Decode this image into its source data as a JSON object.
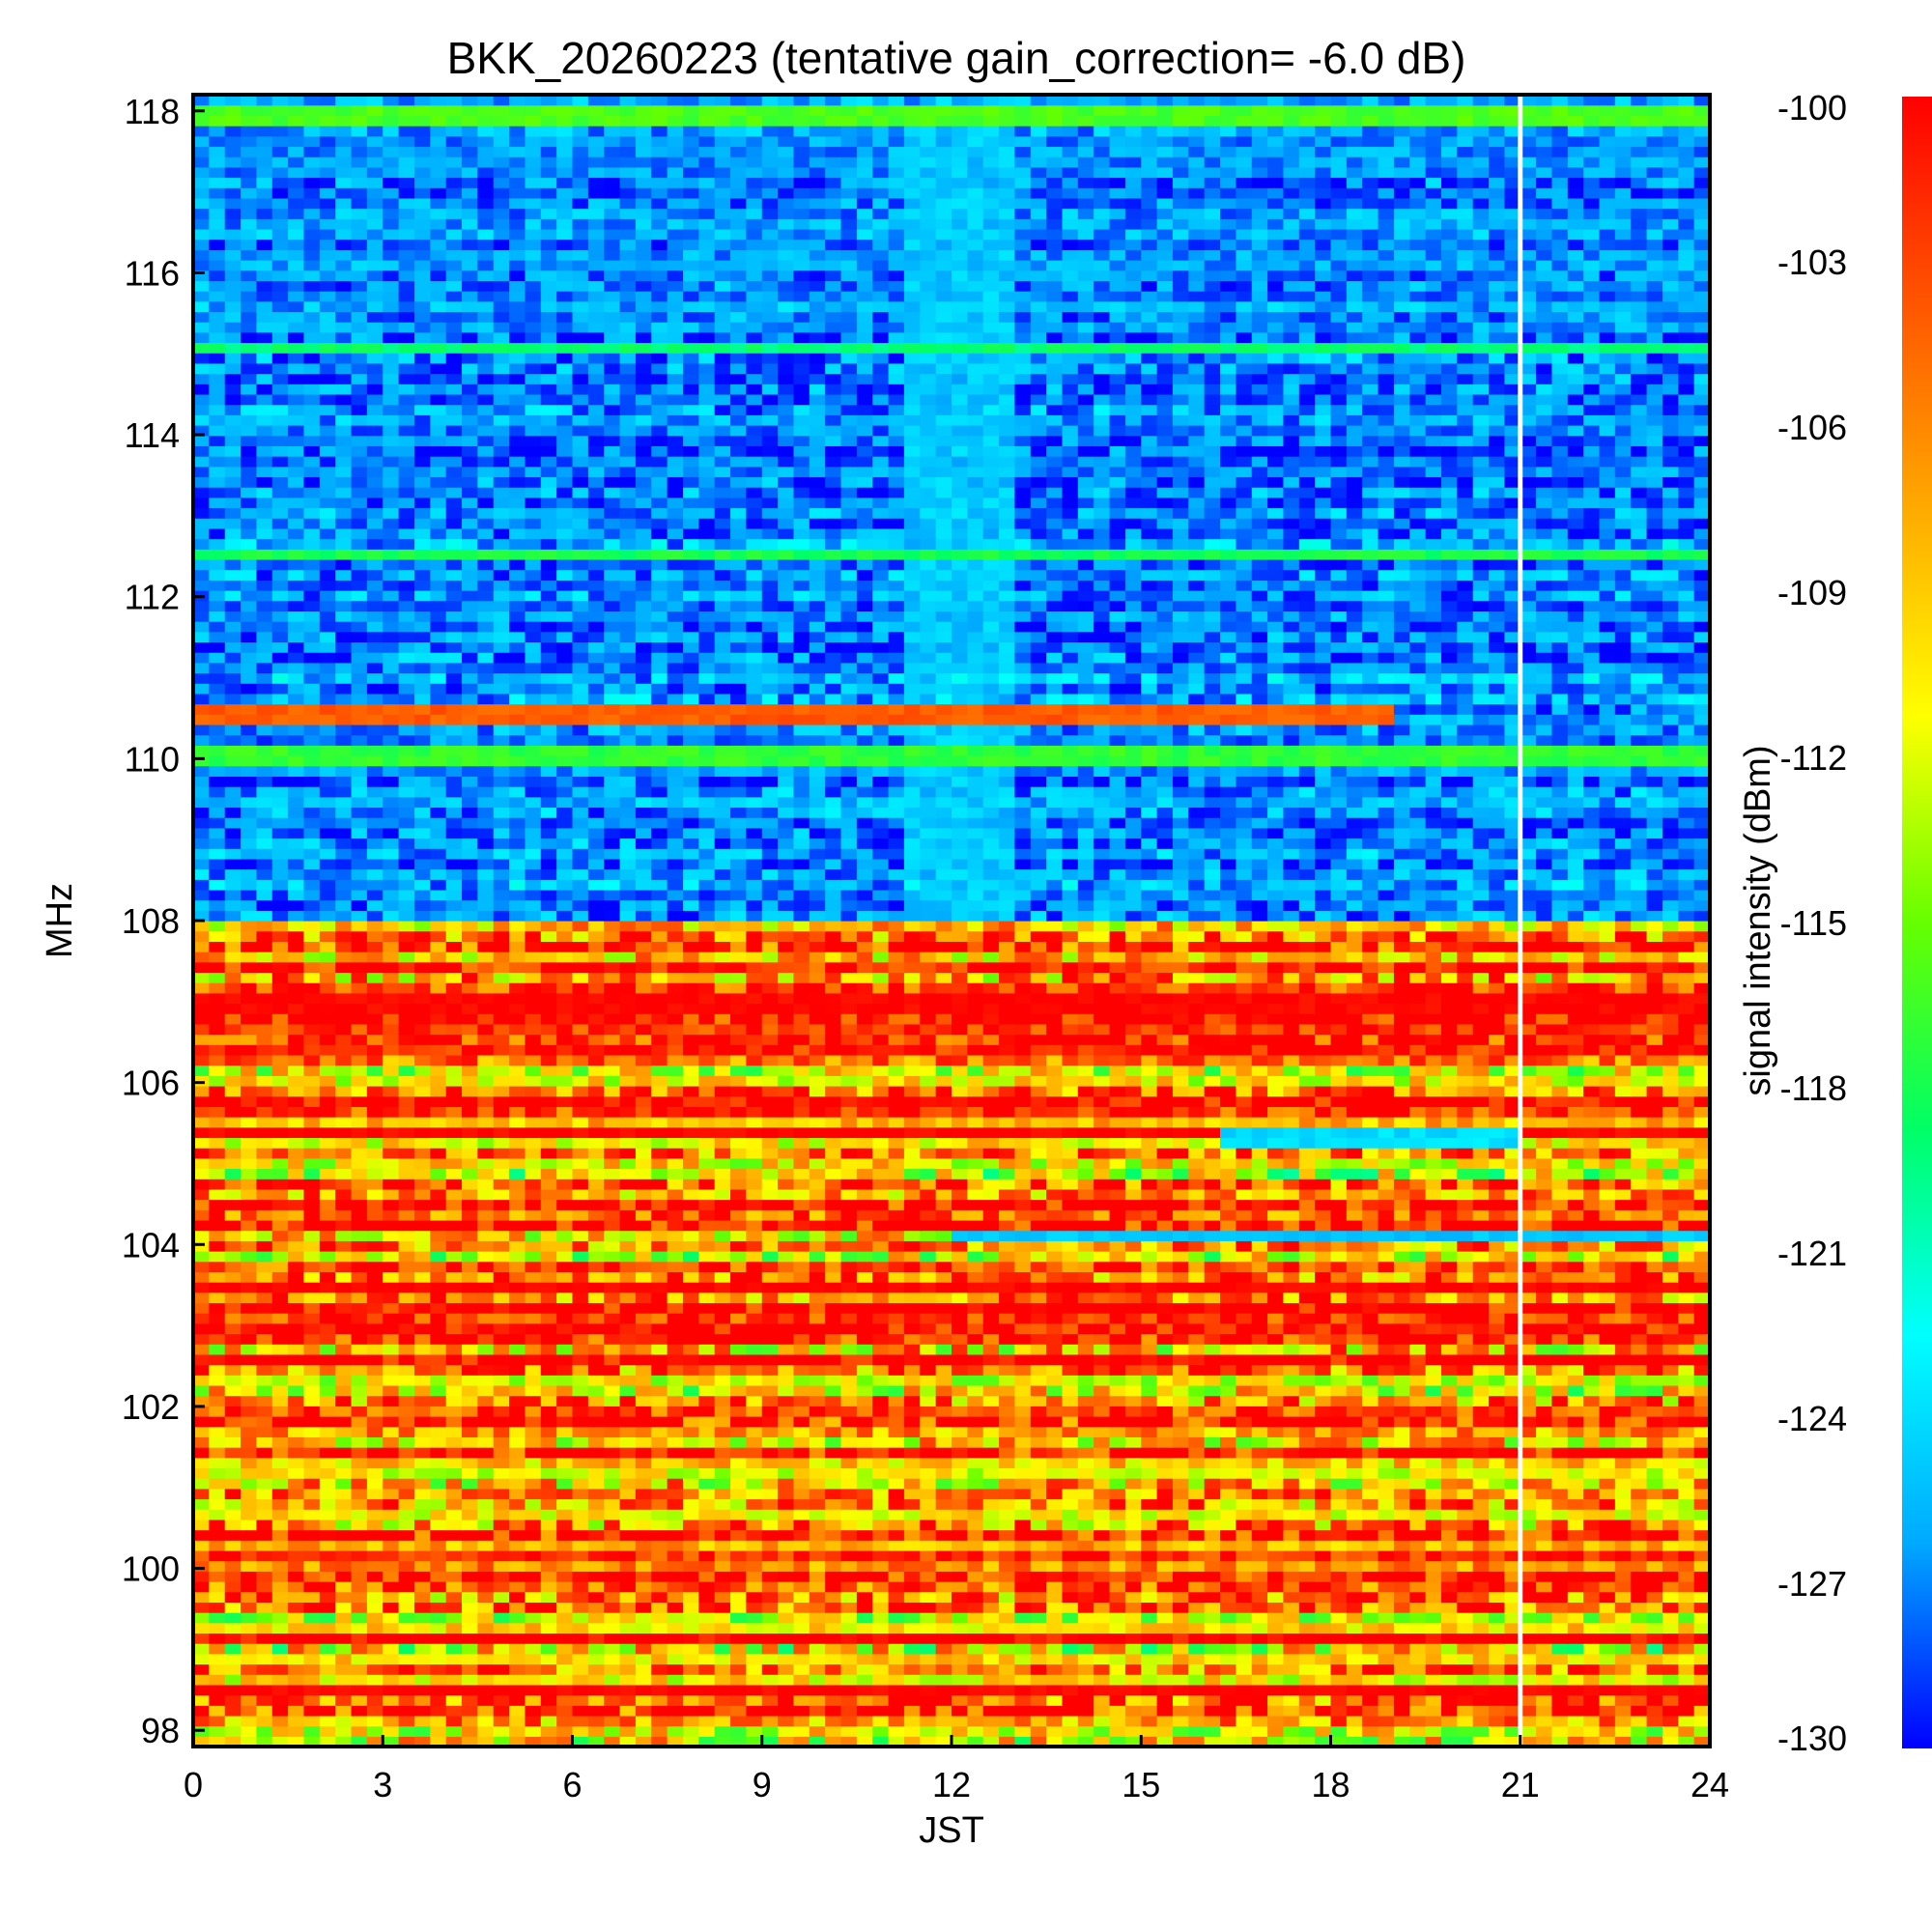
{
  "chart_data": {
    "type": "heatmap",
    "title": "BKK_20260223 (tentative gain_correction= -6.0 dB)",
    "xlabel": "JST",
    "ylabel": "MHz",
    "colorbar_label": "signal intensity (dBm)",
    "xlim": [
      0,
      24
    ],
    "ylim": [
      97.8,
      118.2
    ],
    "clim": [
      -130,
      -100
    ],
    "x_ticks": [
      0,
      3,
      6,
      9,
      12,
      15,
      18,
      21,
      24
    ],
    "x_tick_labels": [
      "0",
      "3",
      "6",
      "9",
      "12",
      "15",
      "18",
      "21",
      "24"
    ],
    "y_ticks": [
      98,
      100,
      102,
      104,
      106,
      108,
      110,
      112,
      114,
      116,
      118
    ],
    "y_tick_labels": [
      "98",
      "100",
      "102",
      "104",
      "106",
      "108",
      "110",
      "112",
      "114",
      "116",
      "118"
    ],
    "colorbar_ticks": [
      -100,
      -103,
      -106,
      -109,
      -112,
      -115,
      -118,
      -121,
      -124,
      -127,
      -130
    ],
    "colorbar_tick_labels": [
      "-100",
      "-103",
      "-106",
      "-109",
      "-112",
      "-115",
      "-118",
      "-121",
      "-124",
      "-127",
      "-130"
    ],
    "colormap": [
      "#0000ff",
      "#00aaff",
      "#00ffff",
      "#00ff66",
      "#66ff00",
      "#ffff00",
      "#ffaa00",
      "#ff5500",
      "#ff0000"
    ],
    "data_gap_jst": 21.0,
    "background_levels": [
      {
        "band": "108-118 MHz (air band)",
        "typical_dbm": -128
      },
      {
        "band": "98-108 MHz (FM band)",
        "typical_dbm": -106
      }
    ],
    "features": [
      {
        "name": "daytime enhancement",
        "x_range": [
          11.2,
          13.0
        ],
        "y_range": [
          108,
          118
        ],
        "dbm": -125
      },
      {
        "name": "steady carrier",
        "freq_mhz": 110.55,
        "x_range": [
          0,
          19.0
        ],
        "dbm": -104
      },
      {
        "name": "steady carrier",
        "freq_mhz": 110.05,
        "x_range": [
          0,
          24
        ],
        "dbm": -117
      },
      {
        "name": "steady carrier",
        "freq_mhz": 112.55,
        "x_range": [
          0,
          24
        ],
        "dbm": -118
      },
      {
        "name": "steady carrier",
        "freq_mhz": 115.05,
        "x_range": [
          0,
          24
        ],
        "dbm": -119
      },
      {
        "name": "steady carrier",
        "freq_mhz": 117.95,
        "x_range": [
          0,
          24
        ],
        "dbm": -116
      },
      {
        "name": "strong FM station",
        "freq_mhz": 107.0,
        "x_range": [
          0,
          24
        ],
        "dbm": -100
      },
      {
        "name": "strong FM station",
        "freq_mhz": 105.4,
        "x_range": [
          0,
          24
        ],
        "dbm": -100
      },
      {
        "name": "strong FM station",
        "freq_mhz": 103.5,
        "x_range": [
          0,
          24
        ],
        "dbm": -100
      },
      {
        "name": "strong FM station",
        "freq_mhz": 98.5,
        "x_range": [
          0,
          24
        ],
        "dbm": -100
      },
      {
        "name": "weak channel",
        "freq_mhz": 104.1,
        "x_range": [
          12.0,
          24
        ],
        "dbm": -125
      },
      {
        "name": "weak channel",
        "freq_mhz": 105.3,
        "x_range": [
          16.3,
          21.0
        ],
        "dbm": -124
      }
    ]
  }
}
